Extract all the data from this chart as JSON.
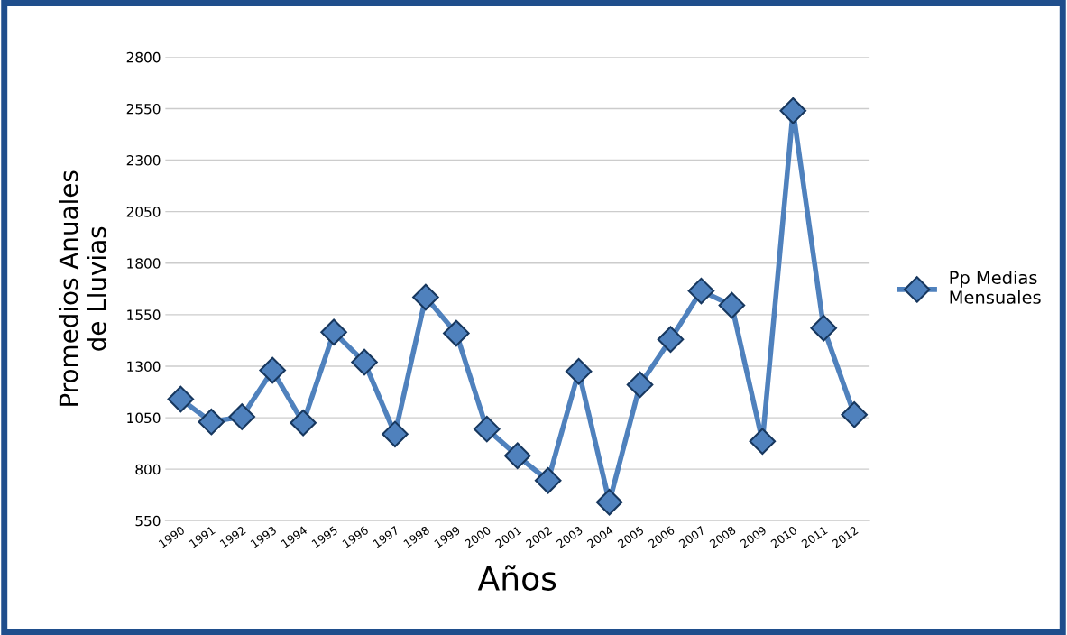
{
  "chart_data": {
    "type": "line",
    "xlabel": "Años",
    "ylabel": "Promedios Anuales\nde Lluvias",
    "categories": [
      "1990",
      "1991",
      "1992",
      "1993",
      "1994",
      "1995",
      "1996",
      "1997",
      "1998",
      "1999",
      "2000",
      "2001",
      "2002",
      "2003",
      "2004",
      "2005",
      "2006",
      "2007",
      "2008",
      "2009",
      "2010",
      "2011",
      "2012"
    ],
    "series": [
      {
        "name": "Pp Medias\nMensuales",
        "color": "#4f81bd",
        "values": [
          1140,
          1030,
          1055,
          1280,
          1025,
          1465,
          1320,
          970,
          1635,
          1460,
          995,
          865,
          745,
          1275,
          640,
          1210,
          1430,
          1665,
          1595,
          935,
          2540,
          1485,
          1065
        ]
      }
    ],
    "ylim": [
      550,
      2800
    ],
    "yticks": [
      550,
      800,
      1050,
      1300,
      1550,
      1800,
      2050,
      2300,
      2550,
      2800
    ],
    "grid": "y",
    "legend": "right",
    "marker": "diamond",
    "line_style": "solid"
  }
}
